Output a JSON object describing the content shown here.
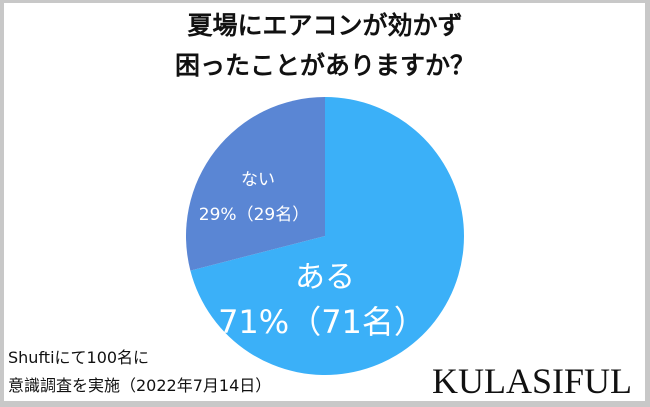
{
  "chart_data": {
    "type": "pie",
    "title": [
      "夏場にエアコンが効かず",
      "困ったことがありますか？"
    ],
    "slices": [
      {
        "label": "ある",
        "value": 71,
        "value_label": "71%（71名）",
        "color": "#3bb0f8"
      },
      {
        "label": "ない",
        "value": 29,
        "value_label": "29%（29名）",
        "color": "#5a86d4"
      }
    ],
    "start": "12 o'clock",
    "direction": "clockwise"
  },
  "note": [
    "Shuftiにて100名に",
    "意識調査を実施（2022年7月14日）"
  ],
  "logo": "KULASIFUL"
}
